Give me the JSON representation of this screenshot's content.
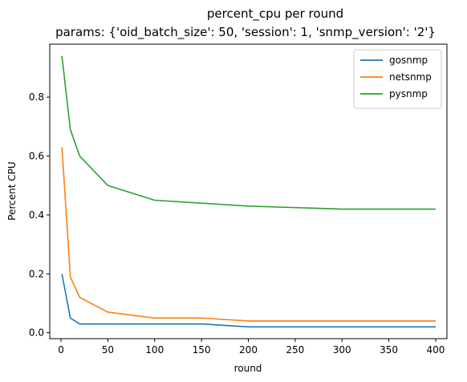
{
  "chart_data": {
    "type": "line",
    "title": "percent_cpu per round",
    "subtitle": "params: {'oid_batch_size': 50, 'session': 1, 'snmp_version': '2'}",
    "xlabel": "round",
    "ylabel": "Percent CPU",
    "xlim": [
      -12,
      412
    ],
    "ylim": [
      -0.02,
      0.98
    ],
    "xticks": [
      0,
      50,
      100,
      150,
      200,
      250,
      300,
      350,
      400
    ],
    "yticks": [
      0.0,
      0.2,
      0.4,
      0.6,
      0.8
    ],
    "ytick_labels": [
      "0.0",
      "0.2",
      "0.4",
      "0.6",
      "0.8"
    ],
    "grid": false,
    "legend_position": "top-right",
    "x": [
      1,
      10,
      20,
      50,
      100,
      150,
      200,
      300,
      400
    ],
    "series": [
      {
        "name": "gosnmp",
        "color": "#1f77b4",
        "values": [
          0.2,
          0.05,
          0.03,
          0.03,
          0.03,
          0.03,
          0.02,
          0.02,
          0.02
        ]
      },
      {
        "name": "netsnmp",
        "color": "#ff7f0e",
        "values": [
          0.63,
          0.19,
          0.12,
          0.07,
          0.05,
          0.05,
          0.04,
          0.04,
          0.04
        ]
      },
      {
        "name": "pysnmp",
        "color": "#2ca02c",
        "values": [
          0.94,
          0.69,
          0.6,
          0.5,
          0.45,
          0.44,
          0.43,
          0.42,
          0.42
        ]
      }
    ]
  }
}
